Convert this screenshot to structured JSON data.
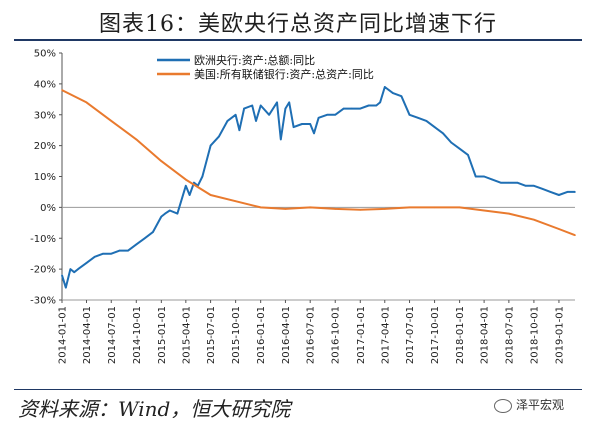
{
  "title": "图表16：美欧央行总资产同比增速下行",
  "source": "资料来源：Wind，恒大研究院",
  "brand": "泽平宏观",
  "chart_data": {
    "type": "line",
    "title": "图表16：美欧央行总资产同比增速下行",
    "xlabel": "",
    "ylabel": "",
    "ylim": [
      -30,
      50
    ],
    "yticks": [
      "50%",
      "40%",
      "30%",
      "20%",
      "10%",
      "0%",
      "-10%",
      "-20%",
      "-30%"
    ],
    "xlim": [
      "2014-01-01",
      "2019-03-01"
    ],
    "xticks": [
      "2014-01-01",
      "2014-04-01",
      "2014-07-01",
      "2014-10-01",
      "2015-01-01",
      "2015-04-01",
      "2015-07-01",
      "2015-10-01",
      "2016-01-01",
      "2016-04-01",
      "2016-07-01",
      "2016-10-01",
      "2017-01-01",
      "2017-04-01",
      "2017-07-01",
      "2017-10-01",
      "2018-01-01",
      "2018-04-01",
      "2018-07-01",
      "2018-10-01",
      "2019-01-01"
    ],
    "legend_position": "top",
    "series": [
      {
        "name": "欧洲央行:资产:总额:同比",
        "color": "#1f6fb4",
        "x": [
          "2014-01-01",
          "2014-01-15",
          "2014-02-01",
          "2014-02-15",
          "2014-03-01",
          "2014-04-01",
          "2014-05-01",
          "2014-06-01",
          "2014-07-01",
          "2014-08-01",
          "2014-09-01",
          "2014-10-01",
          "2014-11-01",
          "2014-12-01",
          "2015-01-01",
          "2015-01-15",
          "2015-02-01",
          "2015-03-01",
          "2015-04-01",
          "2015-04-15",
          "2015-05-01",
          "2015-05-15",
          "2015-06-01",
          "2015-07-01",
          "2015-08-01",
          "2015-09-01",
          "2015-10-01",
          "2015-10-15",
          "2015-11-01",
          "2015-12-01",
          "2015-12-15",
          "2016-01-01",
          "2016-02-01",
          "2016-03-01",
          "2016-03-15",
          "2016-04-01",
          "2016-04-15",
          "2016-05-01",
          "2016-06-01",
          "2016-07-01",
          "2016-07-15",
          "2016-08-01",
          "2016-09-01",
          "2016-10-01",
          "2016-11-01",
          "2016-12-01",
          "2017-01-01",
          "2017-02-01",
          "2017-03-01",
          "2017-03-15",
          "2017-04-01",
          "2017-05-01",
          "2017-06-01",
          "2017-07-01",
          "2017-08-01",
          "2017-09-01",
          "2017-10-01",
          "2017-11-01",
          "2017-12-01",
          "2018-01-01",
          "2018-02-01",
          "2018-03-01",
          "2018-03-15",
          "2018-04-01",
          "2018-05-01",
          "2018-06-01",
          "2018-07-01",
          "2018-08-01",
          "2018-09-01",
          "2018-10-01",
          "2018-11-01",
          "2018-12-01",
          "2019-01-01",
          "2019-02-01",
          "2019-03-01"
        ],
        "values": [
          -22,
          -26,
          -20,
          -21,
          -20,
          -18,
          -16,
          -15,
          -15,
          -14,
          -14,
          -12,
          -10,
          -8,
          -3,
          -2,
          -1,
          -2,
          7,
          4,
          8,
          7,
          10,
          20,
          23,
          28,
          30,
          25,
          32,
          33,
          28,
          33,
          30,
          34,
          22,
          32,
          34,
          26,
          27,
          27,
          24,
          29,
          30,
          30,
          32,
          32,
          32,
          33,
          33,
          34,
          39,
          37,
          36,
          30,
          29,
          28,
          26,
          24,
          21,
          19,
          17,
          10,
          10,
          10,
          9,
          8,
          8,
          8,
          7,
          7,
          6,
          5,
          4,
          5,
          5
        ]
      },
      {
        "name": "美国:所有联储银行:资产:总资产:同比",
        "color": "#e97a2e",
        "x": [
          "2014-01-01",
          "2014-04-01",
          "2014-07-01",
          "2014-10-01",
          "2015-01-01",
          "2015-04-01",
          "2015-07-01",
          "2015-10-01",
          "2016-01-01",
          "2016-04-01",
          "2016-07-01",
          "2016-10-01",
          "2017-01-01",
          "2017-04-01",
          "2017-07-01",
          "2017-10-01",
          "2018-01-01",
          "2018-04-01",
          "2018-07-01",
          "2018-10-01",
          "2019-01-01",
          "2019-03-01"
        ],
        "values": [
          38,
          34,
          28,
          22,
          15,
          9,
          4,
          2,
          0,
          -0.5,
          0,
          -0.5,
          -0.8,
          -0.5,
          0,
          0,
          0,
          -1,
          -2,
          -4,
          -7,
          -9
        ]
      }
    ]
  }
}
